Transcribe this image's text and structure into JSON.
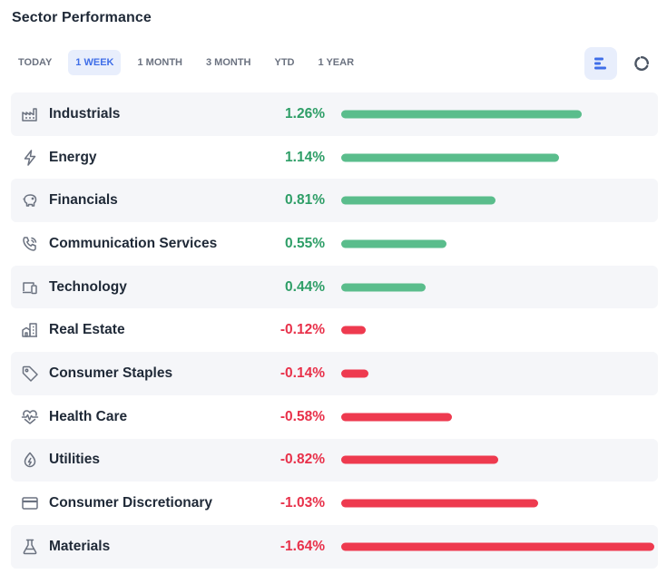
{
  "widget": {
    "title": "Sector Performance"
  },
  "tabs": [
    {
      "label": "TODAY",
      "active": false
    },
    {
      "label": "1 WEEK",
      "active": true
    },
    {
      "label": "1 MONTH",
      "active": false
    },
    {
      "label": "3 MONTH",
      "active": false
    },
    {
      "label": "YTD",
      "active": false
    },
    {
      "label": "1 YEAR",
      "active": false
    }
  ],
  "view_toggle": {
    "selected": "bar",
    "options": [
      "bar-chart-icon",
      "donut-chart-icon"
    ]
  },
  "colors": {
    "positive": "#2e9e67",
    "positive_bar": "#5abd8c",
    "negative": "#e8314a",
    "negative_bar": "#ee3a4f",
    "accent": "#3f6ee8",
    "icon": "#6b7280"
  },
  "chart_data": {
    "type": "bar",
    "orientation": "horizontal",
    "title": "Sector Performance",
    "period": "1 WEEK",
    "categories": [
      "Industrials",
      "Energy",
      "Financials",
      "Communication Services",
      "Technology",
      "Real Estate",
      "Consumer Staples",
      "Health Care",
      "Utilities",
      "Consumer Discretionary",
      "Materials"
    ],
    "values": [
      1.26,
      1.14,
      0.81,
      0.55,
      0.44,
      -0.12,
      -0.14,
      -0.58,
      -0.82,
      -1.03,
      -1.64
    ],
    "value_labels": [
      "1.26%",
      "1.14%",
      "0.81%",
      "0.55%",
      "0.44%",
      "-0.12%",
      "-0.14%",
      "-0.58%",
      "-0.82%",
      "-1.03%",
      "-1.64%"
    ],
    "unit": "%",
    "scale_max_abs": 1.64
  },
  "sectors": [
    {
      "name": "Industrials",
      "value": "1.26%",
      "icon": "factory-icon"
    },
    {
      "name": "Energy",
      "value": "1.14%",
      "icon": "lightning-icon"
    },
    {
      "name": "Financials",
      "value": "0.81%",
      "icon": "piggy-bank-icon"
    },
    {
      "name": "Communication Services",
      "value": "0.55%",
      "icon": "phone-call-icon"
    },
    {
      "name": "Technology",
      "value": "0.44%",
      "icon": "devices-icon"
    },
    {
      "name": "Real Estate",
      "value": "-0.12%",
      "icon": "buildings-icon"
    },
    {
      "name": "Consumer Staples",
      "value": "-0.14%",
      "icon": "tag-icon"
    },
    {
      "name": "Health Care",
      "value": "-0.58%",
      "icon": "heartbeat-icon"
    },
    {
      "name": "Utilities",
      "value": "-0.82%",
      "icon": "drop-icon"
    },
    {
      "name": "Consumer Discretionary",
      "value": "-1.03%",
      "icon": "credit-card-icon"
    },
    {
      "name": "Materials",
      "value": "-1.64%",
      "icon": "flask-icon"
    }
  ]
}
